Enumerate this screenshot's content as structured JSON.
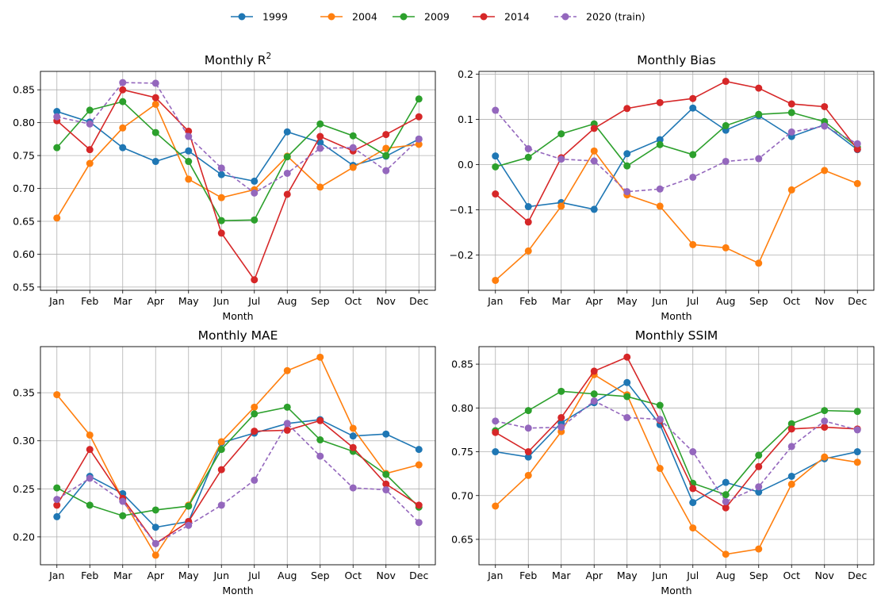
{
  "legend": [
    {
      "name": "1999",
      "color": "#1f77b4",
      "dashed": false
    },
    {
      "name": "2004",
      "color": "#ff7f0e",
      "dashed": false
    },
    {
      "name": "2009",
      "color": "#2ca02c",
      "dashed": false
    },
    {
      "name": "2014",
      "color": "#d62728",
      "dashed": false
    },
    {
      "name": "2020 (train)",
      "color": "#9467bd",
      "dashed": true
    }
  ],
  "chart_data": [
    {
      "type": "line",
      "title": "Monthly R",
      "title_superscript": "2",
      "xlabel": "Month",
      "ylabel": "",
      "categories": [
        "Jan",
        "Feb",
        "Mar",
        "Apr",
        "May",
        "Jun",
        "Jul",
        "Aug",
        "Sep",
        "Oct",
        "Nov",
        "Dec"
      ],
      "ylim": [
        0.545,
        0.878
      ],
      "yticks": [
        0.55,
        0.6,
        0.65,
        0.7,
        0.75,
        0.8,
        0.85
      ],
      "ytick_labels": [
        "0.55",
        "0.60",
        "0.65",
        "0.70",
        "0.75",
        "0.80",
        "0.85"
      ],
      "grid": true,
      "series": [
        {
          "name": "1999",
          "values": [
            0.817,
            0.801,
            0.762,
            0.741,
            0.757,
            0.721,
            0.711,
            0.786,
            0.77,
            0.735,
            0.749,
            0.775
          ]
        },
        {
          "name": "2004",
          "values": [
            0.655,
            0.738,
            0.792,
            0.828,
            0.714,
            0.686,
            0.698,
            0.749,
            0.702,
            0.732,
            0.761,
            0.767
          ]
        },
        {
          "name": "2009",
          "values": [
            0.762,
            0.819,
            0.832,
            0.785,
            0.741,
            0.651,
            0.652,
            0.748,
            0.798,
            0.78,
            0.75,
            0.836
          ]
        },
        {
          "name": "2014",
          "values": [
            0.803,
            0.759,
            0.85,
            0.838,
            0.787,
            0.632,
            0.561,
            0.691,
            0.779,
            0.757,
            0.782,
            0.809
          ]
        },
        {
          "name": "2020 (train)",
          "values": [
            0.809,
            0.798,
            0.861,
            0.86,
            0.779,
            0.731,
            0.693,
            0.723,
            0.761,
            0.762,
            0.727,
            0.775
          ]
        }
      ]
    },
    {
      "type": "line",
      "title": "Monthly Bias",
      "xlabel": "Month",
      "ylabel": "",
      "categories": [
        "Jan",
        "Feb",
        "Mar",
        "Apr",
        "May",
        "Jun",
        "Jul",
        "Aug",
        "Sep",
        "Oct",
        "Nov",
        "Dec"
      ],
      "ylim": [
        -0.278,
        0.206
      ],
      "yticks": [
        -0.2,
        -0.1,
        0.0,
        0.1,
        0.2
      ],
      "ytick_labels": [
        "−0.2",
        "−0.1",
        "0.0",
        "0.1",
        "0.2"
      ],
      "grid": true,
      "series": [
        {
          "name": "1999",
          "values": [
            0.019,
            -0.093,
            -0.084,
            -0.099,
            0.024,
            0.055,
            0.125,
            0.076,
            0.108,
            0.062,
            0.088,
            0.033
          ]
        },
        {
          "name": "2004",
          "values": [
            -0.256,
            -0.191,
            -0.092,
            0.03,
            -0.067,
            -0.092,
            -0.177,
            -0.184,
            -0.218,
            -0.056,
            -0.013,
            -0.042
          ]
        },
        {
          "name": "2009",
          "values": [
            -0.005,
            0.016,
            0.068,
            0.09,
            -0.003,
            0.044,
            0.022,
            0.086,
            0.111,
            0.115,
            0.095,
            0.038
          ]
        },
        {
          "name": "2014",
          "values": [
            -0.065,
            -0.127,
            0.015,
            0.08,
            0.124,
            0.137,
            0.146,
            0.184,
            0.169,
            0.134,
            0.128,
            0.034
          ]
        },
        {
          "name": "2020 (train)",
          "values": [
            0.12,
            0.035,
            0.012,
            0.008,
            -0.06,
            -0.054,
            -0.028,
            0.007,
            0.013,
            0.072,
            0.085,
            0.046
          ]
        }
      ]
    },
    {
      "type": "line",
      "title": "Monthly MAE",
      "xlabel": "Month",
      "ylabel": "",
      "categories": [
        "Jan",
        "Feb",
        "Mar",
        "Apr",
        "May",
        "Jun",
        "Jul",
        "Aug",
        "Sep",
        "Oct",
        "Nov",
        "Dec"
      ],
      "ylim": [
        0.171,
        0.398
      ],
      "yticks": [
        0.2,
        0.25,
        0.3,
        0.35
      ],
      "ytick_labels": [
        "0.20",
        "0.25",
        "0.30",
        "0.35"
      ],
      "grid": true,
      "series": [
        {
          "name": "1999",
          "values": [
            0.221,
            0.263,
            0.245,
            0.21,
            0.216,
            0.298,
            0.308,
            0.318,
            0.322,
            0.305,
            0.307,
            0.291
          ]
        },
        {
          "name": "2004",
          "values": [
            0.348,
            0.306,
            0.239,
            0.181,
            0.233,
            0.299,
            0.335,
            0.373,
            0.387,
            0.313,
            0.266,
            0.275
          ]
        },
        {
          "name": "2009",
          "values": [
            0.251,
            0.233,
            0.222,
            0.228,
            0.232,
            0.291,
            0.328,
            0.335,
            0.301,
            0.289,
            0.265,
            0.231
          ]
        },
        {
          "name": "2014",
          "values": [
            0.233,
            0.291,
            0.24,
            0.193,
            0.216,
            0.27,
            0.31,
            0.311,
            0.321,
            0.293,
            0.255,
            0.233
          ]
        },
        {
          "name": "2020 (train)",
          "values": [
            0.239,
            0.261,
            0.237,
            0.193,
            0.212,
            0.233,
            0.259,
            0.318,
            0.284,
            0.251,
            0.249,
            0.215
          ]
        }
      ]
    },
    {
      "type": "line",
      "title": "Monthly SSIM",
      "xlabel": "Month",
      "ylabel": "",
      "categories": [
        "Jan",
        "Feb",
        "Mar",
        "Apr",
        "May",
        "Jun",
        "Jul",
        "Aug",
        "Sep",
        "Oct",
        "Nov",
        "Dec"
      ],
      "ylim": [
        0.621,
        0.87
      ],
      "yticks": [
        0.65,
        0.7,
        0.75,
        0.8,
        0.85
      ],
      "ytick_labels": [
        "0.65",
        "0.70",
        "0.75",
        "0.80",
        "0.85"
      ],
      "grid": true,
      "series": [
        {
          "name": "1999",
          "values": [
            0.75,
            0.744,
            0.783,
            0.806,
            0.829,
            0.781,
            0.692,
            0.715,
            0.704,
            0.722,
            0.742,
            0.75
          ]
        },
        {
          "name": "2004",
          "values": [
            0.688,
            0.723,
            0.773,
            0.838,
            0.815,
            0.731,
            0.663,
            0.633,
            0.639,
            0.713,
            0.744,
            0.738
          ]
        },
        {
          "name": "2009",
          "values": [
            0.774,
            0.797,
            0.819,
            0.816,
            0.813,
            0.803,
            0.714,
            0.701,
            0.746,
            0.782,
            0.797,
            0.796
          ]
        },
        {
          "name": "2014",
          "values": [
            0.772,
            0.75,
            0.789,
            0.842,
            0.858,
            0.786,
            0.708,
            0.686,
            0.733,
            0.776,
            0.778,
            0.776
          ]
        },
        {
          "name": "2020 (train)",
          "values": [
            0.785,
            0.777,
            0.778,
            0.808,
            0.789,
            0.787,
            0.75,
            0.693,
            0.71,
            0.756,
            0.785,
            0.775
          ]
        }
      ]
    }
  ]
}
